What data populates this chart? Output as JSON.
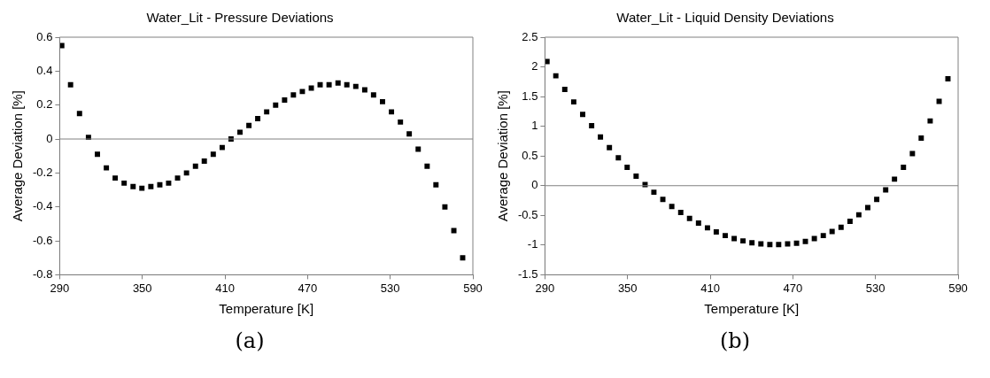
{
  "chart_data": [
    {
      "type": "scatter",
      "title": "Water_Lit - Pressure Deviations",
      "xlabel": "Temperature [K]",
      "ylabel": "Average Deviation [%]",
      "marker": "square",
      "x": [
        291.5,
        297.9,
        304.4,
        310.9,
        317.4,
        323.9,
        330.3,
        336.8,
        343.3,
        349.7,
        356.2,
        362.7,
        369.1,
        375.6,
        382.1,
        388.6,
        395.0,
        401.5,
        408.0,
        414.4,
        420.9,
        427.4,
        433.8,
        440.3,
        446.8,
        453.3,
        459.7,
        466.2,
        472.7,
        479.1,
        485.6,
        492.1,
        498.5,
        505.0,
        511.5,
        517.9,
        524.4,
        530.9,
        537.4,
        543.8,
        550.3,
        556.8,
        563.2,
        569.7,
        576.2,
        582.6
      ],
      "series": [
        {
          "color": "#000000",
          "values": [
            0.55,
            0.32,
            0.15,
            0.01,
            -0.09,
            -0.17,
            -0.23,
            -0.26,
            -0.28,
            -0.29,
            -0.28,
            -0.27,
            -0.26,
            -0.23,
            -0.2,
            -0.16,
            -0.13,
            -0.09,
            -0.05,
            0.0,
            0.04,
            0.08,
            0.12,
            0.16,
            0.2,
            0.23,
            0.26,
            0.28,
            0.3,
            0.32,
            0.32,
            0.33,
            0.32,
            0.31,
            0.29,
            0.26,
            0.22,
            0.16,
            0.1,
            0.03,
            -0.06,
            -0.16,
            -0.27,
            -0.4,
            -0.54,
            -0.7
          ]
        }
      ],
      "xlim": [
        290,
        590
      ],
      "xticks": [
        290,
        350,
        410,
        470,
        530,
        590
      ],
      "ylim": [
        -0.8,
        0.6
      ],
      "yticks": [
        -0.8,
        -0.6,
        -0.4,
        -0.2,
        0,
        0.2,
        0.4,
        0.6
      ],
      "ref_lines": [
        {
          "axis": "y",
          "value": 0,
          "color": "#808080"
        }
      ],
      "annotations": [
        "(a)"
      ]
    },
    {
      "type": "scatter",
      "title": "Water_Lit - Liquid Density Deviations",
      "xlabel": "Temperature [K]",
      "ylabel": "Average Deviation [%]",
      "marker": "square",
      "x": [
        291.5,
        297.9,
        304.4,
        310.9,
        317.4,
        323.9,
        330.3,
        336.8,
        343.3,
        349.7,
        356.2,
        362.7,
        369.1,
        375.6,
        382.1,
        388.6,
        395.0,
        401.5,
        408.0,
        414.4,
        420.9,
        427.4,
        433.8,
        440.3,
        446.8,
        453.3,
        459.7,
        466.2,
        472.7,
        479.1,
        485.6,
        492.1,
        498.5,
        505.0,
        511.5,
        517.9,
        524.4,
        530.9,
        537.4,
        543.8,
        550.3,
        556.8,
        563.2,
        569.7,
        576.2,
        582.6
      ],
      "series": [
        {
          "color": "#000000",
          "values": [
            2.09,
            1.85,
            1.62,
            1.41,
            1.2,
            1.01,
            0.82,
            0.64,
            0.47,
            0.31,
            0.16,
            0.02,
            -0.11,
            -0.23,
            -0.35,
            -0.45,
            -0.55,
            -0.63,
            -0.71,
            -0.78,
            -0.84,
            -0.89,
            -0.93,
            -0.96,
            -0.98,
            -0.99,
            -0.99,
            -0.98,
            -0.97,
            -0.94,
            -0.89,
            -0.84,
            -0.77,
            -0.7,
            -0.6,
            -0.49,
            -0.37,
            -0.23,
            -0.07,
            0.11,
            0.31,
            0.54,
            0.8,
            1.09,
            1.42,
            1.8
          ]
        }
      ],
      "xlim": [
        290,
        590
      ],
      "xticks": [
        290,
        350,
        410,
        470,
        530,
        590
      ],
      "ylim": [
        -1.5,
        2.5
      ],
      "yticks": [
        -1.5,
        -1,
        -0.5,
        0,
        0.5,
        1,
        1.5,
        2,
        2.5
      ],
      "ref_lines": [
        {
          "axis": "y",
          "value": 0,
          "color": "#808080"
        }
      ],
      "annotations": [
        "(b)"
      ]
    }
  ]
}
